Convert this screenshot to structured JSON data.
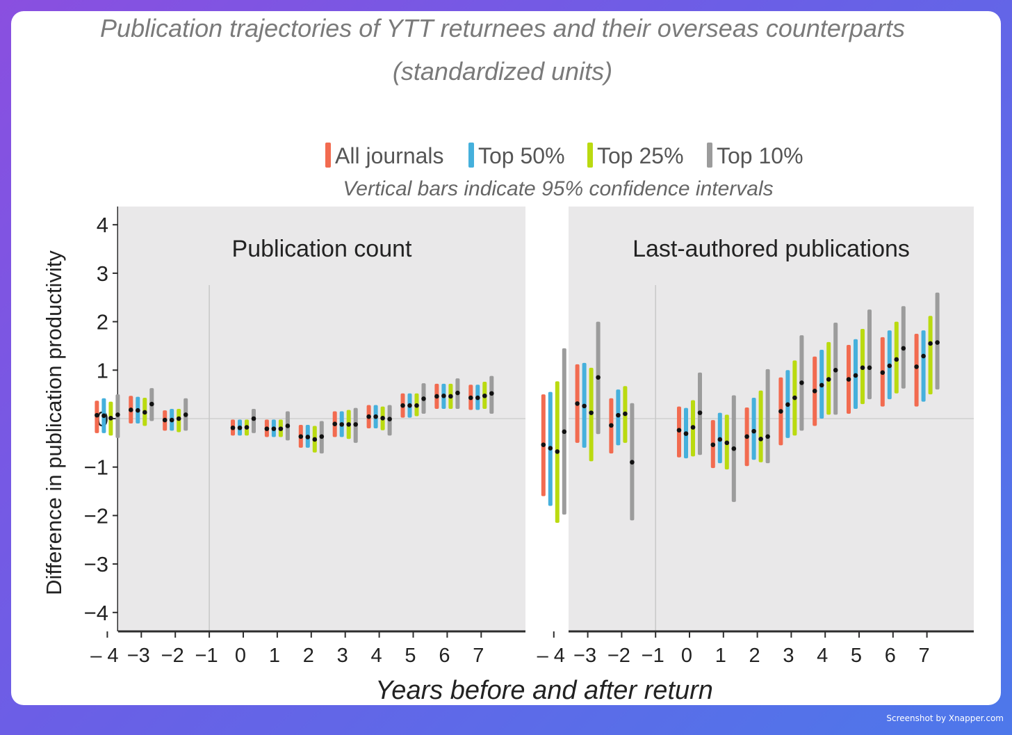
{
  "title_line1": "Publication trajectories of YTT returnees and their overseas counterparts",
  "title_line2": "(standardized units)",
  "watermark": "Screenshot by Xnapper.com",
  "chart_data": {
    "type": "scatter",
    "subtype": "point-with-confidence-interval",
    "note": "Vertical bars indicate 95% confidence intervals",
    "xlabel": "Years before and after return",
    "ylabel": "Difference in publication productivity",
    "ylim": [
      -4,
      4
    ],
    "yticks": [
      "4",
      "3",
      "2",
      "1",
      "0",
      "−1",
      "−2",
      "−3",
      "−4"
    ],
    "ytick_values": [
      4,
      3,
      2,
      1,
      0,
      -1,
      -2,
      -3,
      -4
    ],
    "x_values": [
      -4,
      -3,
      -2,
      -1,
      0,
      1,
      2,
      3,
      4,
      5,
      6,
      7
    ],
    "xticks": [
      "– 4",
      "−3",
      "−2",
      "−1",
      "0",
      "1",
      "2",
      "3",
      "4",
      "5",
      "6",
      "7"
    ],
    "reference_year": -1,
    "legend_position": "top",
    "series": [
      {
        "name": "All journals",
        "color": "#f26b50"
      },
      {
        "name": "Top 50%",
        "color": "#45b0dc"
      },
      {
        "name": "Top 25%",
        "color": "#bada10"
      },
      {
        "name": "Top 10%",
        "color": "#9c9c9c"
      }
    ],
    "panels": [
      {
        "title": "Publication count",
        "points": [
          {
            "x": -4,
            "est": [
              0.07,
              0.06,
              0.01,
              0.08
            ],
            "lo": [
              -0.3,
              -0.3,
              -0.35,
              -0.4
            ],
            "hi": [
              0.37,
              0.42,
              0.35,
              0.5
            ]
          },
          {
            "x": -3,
            "est": [
              0.18,
              0.17,
              0.13,
              0.3
            ],
            "lo": [
              -0.1,
              -0.1,
              -0.15,
              -0.05
            ],
            "hi": [
              0.47,
              0.45,
              0.43,
              0.63
            ]
          },
          {
            "x": -2,
            "est": [
              -0.03,
              -0.03,
              0.0,
              0.08
            ],
            "lo": [
              -0.25,
              -0.25,
              -0.28,
              -0.25
            ],
            "hi": [
              0.17,
              0.2,
              0.2,
              0.42
            ]
          },
          {
            "x": 0,
            "est": [
              -0.19,
              -0.19,
              -0.18,
              0.0
            ],
            "lo": [
              -0.35,
              -0.35,
              -0.35,
              -0.3
            ],
            "hi": [
              -0.02,
              -0.02,
              -0.02,
              0.2
            ]
          },
          {
            "x": 1,
            "est": [
              -0.21,
              -0.21,
              -0.21,
              -0.15
            ],
            "lo": [
              -0.38,
              -0.38,
              -0.38,
              -0.45
            ],
            "hi": [
              -0.02,
              -0.02,
              -0.02,
              0.15
            ]
          },
          {
            "x": 2,
            "est": [
              -0.37,
              -0.38,
              -0.43,
              -0.37
            ],
            "lo": [
              -0.6,
              -0.6,
              -0.7,
              -0.72
            ],
            "hi": [
              -0.13,
              -0.13,
              -0.15,
              -0.05
            ]
          },
          {
            "x": 3,
            "est": [
              -0.11,
              -0.12,
              -0.12,
              -0.12
            ],
            "lo": [
              -0.38,
              -0.38,
              -0.42,
              -0.5
            ],
            "hi": [
              0.15,
              0.15,
              0.18,
              0.22
            ]
          },
          {
            "x": 4,
            "est": [
              0.04,
              0.04,
              0.01,
              -0.01
            ],
            "lo": [
              -0.2,
              -0.2,
              -0.24,
              -0.35
            ],
            "hi": [
              0.28,
              0.28,
              0.25,
              0.28
            ]
          },
          {
            "x": 5,
            "est": [
              0.27,
              0.27,
              0.27,
              0.41
            ],
            "lo": [
              0.02,
              0.02,
              0.05,
              0.1
            ],
            "hi": [
              0.52,
              0.52,
              0.52,
              0.73
            ]
          },
          {
            "x": 6,
            "est": [
              0.46,
              0.47,
              0.46,
              0.53
            ],
            "lo": [
              0.2,
              0.2,
              0.2,
              0.2
            ],
            "hi": [
              0.72,
              0.72,
              0.72,
              0.83
            ]
          },
          {
            "x": 7,
            "est": [
              0.43,
              0.43,
              0.47,
              0.52
            ],
            "lo": [
              0.18,
              0.18,
              0.2,
              0.1
            ],
            "hi": [
              0.7,
              0.7,
              0.76,
              0.88
            ]
          }
        ]
      },
      {
        "title": "Last-authored publications",
        "points": [
          {
            "x": -4,
            "est": [
              -0.54,
              -0.61,
              -0.68,
              -0.27
            ],
            "lo": [
              -1.6,
              -1.8,
              -2.15,
              -1.98
            ],
            "hi": [
              0.5,
              0.55,
              0.77,
              1.45
            ]
          },
          {
            "x": -3,
            "est": [
              0.31,
              0.26,
              0.12,
              0.85
            ],
            "lo": [
              -0.5,
              -0.6,
              -0.88,
              -0.32
            ],
            "hi": [
              1.12,
              1.15,
              1.05,
              2.0
            ]
          },
          {
            "x": -2,
            "est": [
              -0.14,
              0.07,
              0.1,
              -0.9
            ],
            "lo": [
              -0.72,
              -0.55,
              -0.5,
              -2.1
            ],
            "hi": [
              0.42,
              0.6,
              0.67,
              0.32
            ]
          },
          {
            "x": 0,
            "est": [
              -0.24,
              -0.31,
              -0.18,
              0.12
            ],
            "lo": [
              -0.8,
              -0.82,
              -0.78,
              -0.75
            ],
            "hi": [
              0.25,
              0.22,
              0.38,
              0.95
            ]
          },
          {
            "x": 1,
            "est": [
              -0.54,
              -0.43,
              -0.5,
              -0.62
            ],
            "lo": [
              -1.02,
              -0.92,
              -1.05,
              -1.72
            ],
            "hi": [
              -0.03,
              0.12,
              0.08,
              0.48
            ]
          },
          {
            "x": 2,
            "est": [
              -0.37,
              -0.26,
              -0.42,
              -0.37
            ],
            "lo": [
              -0.98,
              -0.85,
              -0.9,
              -0.92
            ],
            "hi": [
              0.23,
              0.43,
              0.58,
              1.02
            ]
          },
          {
            "x": 3,
            "est": [
              0.15,
              0.29,
              0.43,
              0.74
            ],
            "lo": [
              -0.55,
              -0.4,
              -0.35,
              -0.25
            ],
            "hi": [
              0.85,
              1.0,
              1.2,
              1.72
            ]
          },
          {
            "x": 4,
            "est": [
              0.57,
              0.69,
              0.81,
              1.0
            ],
            "lo": [
              -0.15,
              0.0,
              0.08,
              0.08
            ],
            "hi": [
              1.28,
              1.42,
              1.58,
              1.98
            ]
          },
          {
            "x": 5,
            "est": [
              0.81,
              0.89,
              1.05,
              1.05
            ],
            "lo": [
              0.1,
              0.2,
              0.3,
              0.4
            ],
            "hi": [
              1.52,
              1.64,
              1.85,
              2.25
            ]
          },
          {
            "x": 6,
            "est": [
              0.95,
              1.09,
              1.22,
              1.45
            ],
            "lo": [
              0.25,
              0.4,
              0.52,
              0.62
            ],
            "hi": [
              1.68,
              1.82,
              2.0,
              2.32
            ]
          },
          {
            "x": 7,
            "est": [
              1.07,
              1.29,
              1.55,
              1.57
            ],
            "lo": [
              0.25,
              0.35,
              0.5,
              0.6
            ],
            "hi": [
              1.75,
              1.82,
              2.12,
              2.6
            ]
          }
        ]
      }
    ]
  }
}
